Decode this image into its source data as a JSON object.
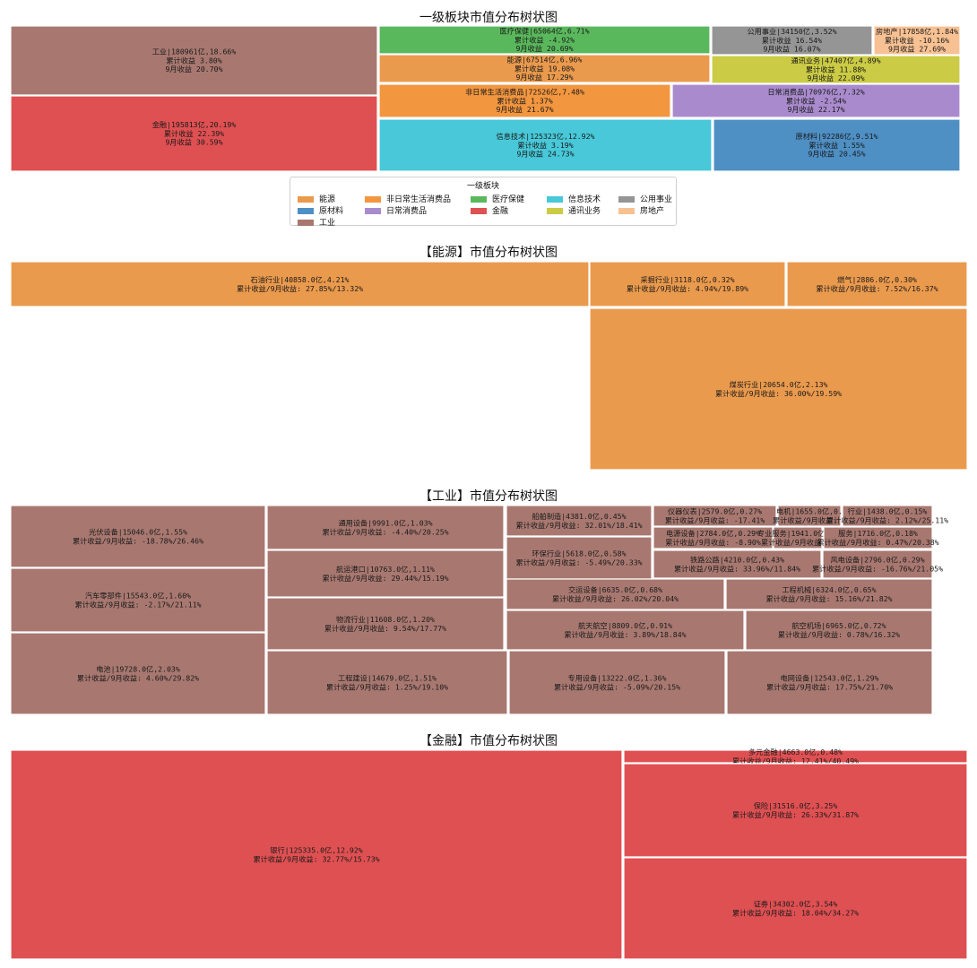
{
  "colors": {
    "能源": "#ea9a4d",
    "原材料": "#4e8fc4",
    "工业": "#a87870",
    "非日常生活消费品": "#f2963f",
    "日常消费品": "#a98bcd",
    "金融": "#df5052",
    "医疗保健": "#5ab85c",
    "信息技术": "#48c8d8",
    "通讯业务": "#cbcb45",
    "公用事业": "#959595",
    "房地产": "#f7c193"
  },
  "chart_data": [
    {
      "type": "treemap",
      "title": "一级板块市值分布树状图",
      "legend_title": "一级板块",
      "legend_placement": "below",
      "legend": [
        "能源",
        "非日常生活消费品",
        "医疗保健",
        "信息技术",
        "公用事业",
        "原材料",
        "日常消费品",
        "金融",
        "通讯业务",
        "房地产",
        "工业"
      ],
      "items": [
        {
          "name": "工业",
          "value": 180961,
          "share": 18.66,
          "cum": 3.8,
          "sep": 20.7,
          "label": "工业|180961亿,18.66%\n累计收益 3.80%\n9月收益 20.70%"
        },
        {
          "name": "金融",
          "value": 195813,
          "share": 20.19,
          "cum": 22.39,
          "sep": 30.59,
          "label": "金融|195813亿,20.19%\n累计收益 22.39%\n9月收益 30.59%"
        },
        {
          "name": "医疗保健",
          "value": 65064,
          "share": 6.71,
          "cum": -4.92,
          "sep": 20.69,
          "label": "医疗保健|65064亿,6.71%\n累计收益 -4.92%\n9月收益 20.69%"
        },
        {
          "name": "能源",
          "value": 67514,
          "share": 6.96,
          "cum": 19.08,
          "sep": 17.29,
          "label": "能源|67514亿,6.96%\n累计收益 19.08%\n9月收益 17.29%"
        },
        {
          "name": "非日常生活消费品",
          "value": 72526,
          "share": 7.48,
          "cum": 1.37,
          "sep": 21.67,
          "label": "非日常生活消费品|72526亿,7.48%\n累计收益 1.37%\n9月收益 21.67%"
        },
        {
          "name": "信息技术",
          "value": 125323,
          "share": 12.92,
          "cum": 3.19,
          "sep": 24.73,
          "label": "信息技术|125323亿,12.92%\n累计收益 3.19%\n9月收益 24.73%"
        },
        {
          "name": "公用事业",
          "value": 34150,
          "share": 3.52,
          "cum": 16.54,
          "sep": 16.07,
          "label": "公用事业|34150亿,3.52%\n累计收益 16.54%\n9月收益 16.07%"
        },
        {
          "name": "房地产",
          "value": 17858,
          "share": 1.84,
          "cum": -10.16,
          "sep": 27.69,
          "label": "房地产|17858亿,1.84%\n累计收益 -10.16%\n9月收益 27.69%"
        },
        {
          "name": "通讯业务",
          "value": 47407,
          "share": 4.89,
          "cum": 11.88,
          "sep": 22.09,
          "label": "通讯业务|47407亿,4.89%\n累计收益 11.88%\n9月收益 22.09%"
        },
        {
          "name": "日常消费品",
          "value": 70976,
          "share": 7.32,
          "cum": -2.54,
          "sep": 22.17,
          "label": "日常消费品|70976亿,7.32%\n累计收益 -2.54%\n9月收益 22.17%"
        },
        {
          "name": "原材料",
          "value": 92286,
          "share": 9.51,
          "cum": 1.55,
          "sep": 20.45,
          "label": "原材料|92286亿,9.51%\n累计收益 1.55%\n9月收益 20.45%"
        }
      ]
    },
    {
      "type": "treemap",
      "title": "【能源】市值分布树状图",
      "color_key": "能源",
      "items": [
        {
          "name": "石油行业",
          "value": 40858.0,
          "share": 4.21,
          "cum": 27.85,
          "sep": 13.32,
          "label": "石油行业|40858.0亿,4.21%\n累计收益/9月收益: 27.85%/13.32%"
        },
        {
          "name": "采掘行业",
          "value": 3118.0,
          "share": 0.32,
          "cum": 4.94,
          "sep": 19.89,
          "label": "采掘行业|3118.0亿,0.32%\n累计收益/9月收益: 4.94%/19.89%"
        },
        {
          "name": "燃气",
          "value": 2886.0,
          "share": 0.3,
          "cum": 7.52,
          "sep": 16.37,
          "label": "燃气|2886.0亿,0.30%\n累计收益/9月收益: 7.52%/16.37%"
        },
        {
          "name": "煤炭行业",
          "value": 20654.0,
          "share": 2.13,
          "cum": 36.0,
          "sep": 19.59,
          "label": "煤炭行业|20654.0亿,2.13%\n累计收益/9月收益: 36.00%/19.59%"
        }
      ]
    },
    {
      "type": "treemap",
      "title": "【工业】市值分布树状图",
      "color_key": "工业",
      "items": [
        {
          "name": "光伏设备",
          "value": 15046.0,
          "share": 1.55,
          "cum": -18.78,
          "sep": 26.46,
          "label": "光伏设备|15046.0亿,1.55%\n累计收益/9月收益: -18.78%/26.46%"
        },
        {
          "name": "汽车零部件",
          "value": 15543.0,
          "share": 1.6,
          "cum": -2.17,
          "sep": 21.11,
          "label": "汽车零部件|15543.0亿,1.60%\n累计收益/9月收益: -2.17%/21.11%"
        },
        {
          "name": "电池",
          "value": 19728.0,
          "share": 2.03,
          "cum": 4.6,
          "sep": 29.82,
          "label": "电池|19728.0亿,2.03%\n累计收益/9月收益: 4.60%/29.82%"
        },
        {
          "name": "通用设备",
          "value": 9991.0,
          "share": 1.03,
          "cum": -4.4,
          "sep": 20.25,
          "label": "通用设备|9991.0亿,1.03%\n累计收益/9月收益: -4.40%/20.25%"
        },
        {
          "name": "航运港口",
          "value": 10763.0,
          "share": 1.11,
          "cum": 29.44,
          "sep": 15.19,
          "label": "航运港口|10763.0亿,1.11%\n累计收益/9月收益: 29.44%/15.19%"
        },
        {
          "name": "物流行业",
          "value": 11608.0,
          "share": 1.2,
          "cum": 9.54,
          "sep": 17.77,
          "label": "物流行业|11608.0亿,1.20%\n累计收益/9月收益: 9.54%/17.77%"
        },
        {
          "name": "工程建设",
          "value": 14679.0,
          "share": 1.51,
          "cum": 1.25,
          "sep": 19.1,
          "label": "工程建设|14679.0亿,1.51%\n累计收益/9月收益: 1.25%/19.10%"
        },
        {
          "name": "船舶制造",
          "value": 4381.0,
          "share": 0.45,
          "cum": 32.01,
          "sep": 18.41,
          "label": "船舶制造|4381.0亿,0.45%\n累计收益/9月收益: 32.01%/18.41%"
        },
        {
          "name": "环保行业",
          "value": 5618.0,
          "share": 0.58,
          "cum": -5.49,
          "sep": 20.33,
          "label": "环保行业|5618.0亿,0.58%\n累计收益/9月收益: -5.49%/20.33%"
        },
        {
          "name": "仪器仪表",
          "value": 2579.0,
          "share": 0.27,
          "cum": -17.41,
          "sep": null,
          "label": "仪器仪表|2579.0亿,0.27%\n累计收益/9月收益: -17.41%"
        },
        {
          "name": "电机",
          "value": 1655.0,
          "share": null,
          "cum": null,
          "sep": null,
          "label": "电机|1655.0亿,0.\n累计收益/9月收益: -"
        },
        {
          "name": "行业",
          "value": 1438.0,
          "share": 0.15,
          "cum": 2.12,
          "sep": 25.11,
          "label": "行业|1438.0亿,0.15%\n累计收益/9月收益: 2.12%/25.11%"
        },
        {
          "name": "电源设备",
          "value": 2784.0,
          "share": 0.29,
          "cum": -8.9,
          "sep": null,
          "label": "电源设备|2784.0亿,0.29%\n累计收益/9月收益: -8.90%"
        },
        {
          "name": "专业服务",
          "value": 1941.0,
          "share": null,
          "cum": null,
          "sep": null,
          "label": "专业服务|1941.0亿,0.\n累计收益/9月收益: -"
        },
        {
          "name": "服务",
          "value": 1716.0,
          "share": 0.18,
          "cum": 0.47,
          "sep": 20.38,
          "label": "服务|1716.0亿,0.18%\n累计收益/9月收益: 0.47%/20.38%"
        },
        {
          "name": "铁路公路",
          "value": 4210.0,
          "share": 0.43,
          "cum": 33.96,
          "sep": 11.84,
          "label": "铁路公路|4210.0亿,0.43%\n累计收益/9月收益: 33.96%/11.84%"
        },
        {
          "name": "风电设备",
          "value": 2796.0,
          "share": 0.29,
          "cum": -16.76,
          "sep": 21.05,
          "label": "风电设备|2796.0亿,0.29%\n累计收益/9月收益: -16.76%/21.05%"
        },
        {
          "name": "交运设备",
          "value": 6635.0,
          "share": 0.68,
          "cum": 26.02,
          "sep": 20.04,
          "label": "交运设备|6635.0亿,0.68%\n累计收益/9月收益: 26.02%/20.04%"
        },
        {
          "name": "工程机械",
          "value": 6324.0,
          "share": 0.65,
          "cum": 15.16,
          "sep": 21.82,
          "label": "工程机械|6324.0亿,0.65%\n累计收益/9月收益: 15.16%/21.82%"
        },
        {
          "name": "航天航空",
          "value": 8809.0,
          "share": 0.91,
          "cum": 3.89,
          "sep": 18.84,
          "label": "航天航空|8809.0亿,0.91%\n累计收益/9月收益: 3.89%/18.84%"
        },
        {
          "name": "航空机场",
          "value": 6965.0,
          "share": 0.72,
          "cum": 0.78,
          "sep": 16.32,
          "label": "航空机场|6965.0亿,0.72%\n累计收益/9月收益: 0.78%/16.32%"
        },
        {
          "name": "专用设备",
          "value": 13222.0,
          "share": 1.36,
          "cum": -5.09,
          "sep": 20.15,
          "label": "专用设备|13222.0亿,1.36%\n累计收益/9月收益: -5.09%/20.15%"
        },
        {
          "name": "电网设备",
          "value": 12543.0,
          "share": 1.29,
          "cum": 17.75,
          "sep": 21.7,
          "label": "电网设备|12543.0亿,1.29%\n累计收益/9月收益: 17.75%/21.70%"
        }
      ]
    },
    {
      "type": "treemap",
      "title": "【金融】市值分布树状图",
      "color_key": "金融",
      "items": [
        {
          "name": "银行",
          "value": 125335.0,
          "share": 12.92,
          "cum": 32.77,
          "sep": 15.73,
          "label": "银行|125335.0亿,12.92%\n累计收益/9月收益: 32.77%/15.73%"
        },
        {
          "name": "多元金融",
          "value": 4663.0,
          "share": 0.48,
          "cum": 12.41,
          "sep": 40.49,
          "label": "多元金融|4663.0亿,0.48%\n累计收益/9月收益: 12.41%/40.49%"
        },
        {
          "name": "保险",
          "value": 31516.0,
          "share": 3.25,
          "cum": 26.33,
          "sep": 31.87,
          "label": "保险|31516.0亿,3.25%\n累计收益/9月收益: 26.33%/31.87%"
        },
        {
          "name": "证券",
          "value": 34302.0,
          "share": 3.54,
          "cum": 18.04,
          "sep": 34.27,
          "label": "证券|34302.0亿,3.54%\n累计收益/9月收益: 18.04%/34.27%"
        }
      ]
    }
  ]
}
